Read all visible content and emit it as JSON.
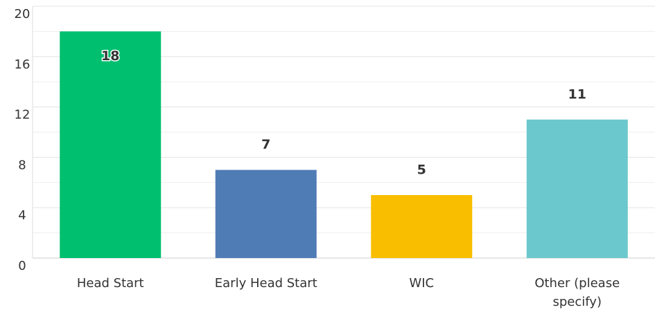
{
  "chart_data": {
    "type": "bar",
    "categories": [
      "Head Start",
      "Early Head Start",
      "WIC",
      "Other (please specify)"
    ],
    "values": [
      18,
      7,
      5,
      11
    ],
    "colors": [
      "#00bf6f",
      "#507cb6",
      "#f9be00",
      "#6bc8cd"
    ],
    "ylim": [
      0,
      20
    ],
    "yticks": [
      0,
      4,
      8,
      12,
      16,
      20
    ],
    "minor_yticks": [
      2,
      6,
      10,
      14,
      18
    ],
    "grid": true
  }
}
